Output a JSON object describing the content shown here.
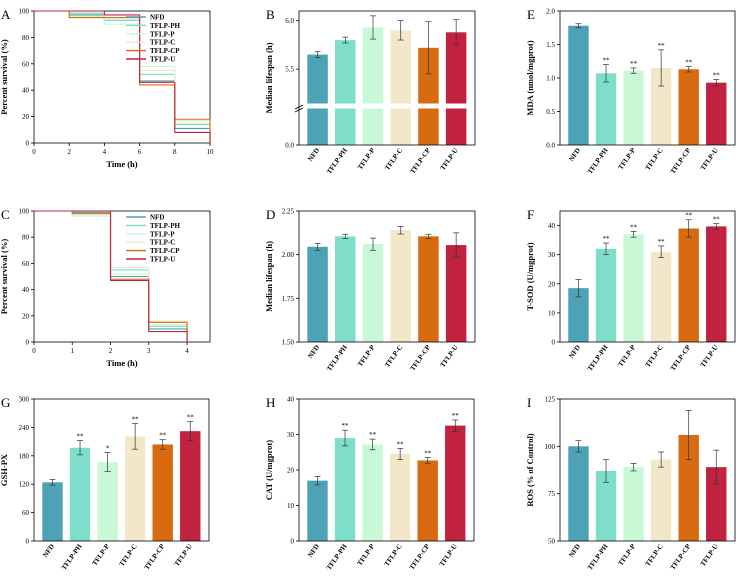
{
  "colors": {
    "NFD": "#4da2b6",
    "TFLP-PH": "#7fdec9",
    "TFLP-P": "#c8f8d6",
    "TFLP-C": "#f3e7c9",
    "TFLP-CP": "#d86a10",
    "TFLP-U": "#c0223f"
  },
  "chart_data": [
    {
      "id": "A",
      "type": "line",
      "xlabel": "Time (h)",
      "ylabel": "Percent survival (%)",
      "xlim": [
        0,
        10
      ],
      "ylim": [
        0,
        100
      ],
      "xticks": [
        0,
        2,
        4,
        6,
        8,
        10
      ],
      "yticks": [
        0,
        20,
        40,
        60,
        80,
        100
      ],
      "legend": [
        "NFD",
        "TFLP-PH",
        "TFLP-P",
        "TFLP-C",
        "TFLP-CP",
        "TFLP-U"
      ],
      "series": [
        {
          "name": "NFD",
          "x": [
            0,
            2,
            4,
            6,
            8,
            10
          ],
          "y": [
            100,
            97,
            93,
            47,
            11,
            0
          ]
        },
        {
          "name": "TFLP-PH",
          "x": [
            0,
            2,
            4,
            6,
            8,
            10
          ],
          "y": [
            100,
            98,
            93,
            52,
            14,
            0
          ]
        },
        {
          "name": "TFLP-P",
          "x": [
            0,
            2,
            4,
            6,
            8,
            10
          ],
          "y": [
            100,
            96,
            90,
            58,
            17,
            0
          ]
        },
        {
          "name": "TFLP-C",
          "x": [
            0,
            2,
            4,
            6,
            8,
            10
          ],
          "y": [
            100,
            99,
            95,
            55,
            15,
            0
          ]
        },
        {
          "name": "TFLP-CP",
          "x": [
            0,
            2,
            4,
            6,
            8,
            10
          ],
          "y": [
            100,
            95,
            95,
            44,
            18,
            0
          ]
        },
        {
          "name": "TFLP-U",
          "x": [
            0,
            2,
            4,
            6,
            8,
            10
          ],
          "y": [
            100,
            100,
            97,
            46,
            8,
            0
          ]
        }
      ]
    },
    {
      "id": "B",
      "type": "bar",
      "ylabel": "Median lifespan (h)",
      "categories": [
        "NFD",
        "TFLP-PH",
        "TFLP-P",
        "TFLP-C",
        "TFLP-CP",
        "TFLP-U"
      ],
      "values": [
        5.65,
        5.8,
        5.93,
        5.9,
        5.72,
        5.88
      ],
      "errors": [
        0.03,
        0.03,
        0.12,
        0.1,
        0.27,
        0.13
      ],
      "ylim_upper": [
        5.15,
        6.1
      ],
      "ylim_lower": [
        0.0,
        0.5
      ],
      "axis_break": true,
      "yticks": [
        0.0,
        5.5,
        6.0
      ],
      "ytick_labels": [
        "0.0",
        "5.5",
        "6.0"
      ],
      "annotations": [
        "",
        "",
        "",
        "",
        "",
        ""
      ]
    },
    {
      "id": "C",
      "type": "line",
      "xlabel": "Time (h)",
      "ylabel": "Percent survival (%)",
      "xlim": [
        0,
        4.6
      ],
      "ylim": [
        0,
        100
      ],
      "xticks": [
        0,
        1,
        2,
        3,
        4
      ],
      "yticks": [
        0,
        20,
        40,
        60,
        80,
        100
      ],
      "legend": [
        "NFD",
        "TFLP-PH",
        "TFLP-P",
        "TFLP-C",
        "TFLP-CP",
        "TFLP-U"
      ],
      "series": [
        {
          "name": "NFD",
          "x": [
            0,
            1,
            2,
            3,
            4
          ],
          "y": [
            100,
            99,
            50,
            10,
            0
          ]
        },
        {
          "name": "TFLP-PH",
          "x": [
            0,
            1,
            2,
            3,
            4
          ],
          "y": [
            100,
            98,
            55,
            12,
            0
          ]
        },
        {
          "name": "TFLP-P",
          "x": [
            0,
            1,
            2,
            3,
            4
          ],
          "y": [
            100,
            96,
            52,
            13,
            0
          ]
        },
        {
          "name": "TFLP-C",
          "x": [
            0,
            1,
            2,
            3,
            4
          ],
          "y": [
            100,
            97,
            57,
            16,
            0
          ]
        },
        {
          "name": "TFLP-CP",
          "x": [
            0,
            1,
            2,
            3,
            4
          ],
          "y": [
            100,
            98,
            48,
            15,
            0
          ]
        },
        {
          "name": "TFLP-U",
          "x": [
            0,
            1,
            2,
            3,
            4
          ],
          "y": [
            100,
            100,
            47,
            8,
            0
          ]
        }
      ]
    },
    {
      "id": "D",
      "type": "bar",
      "ylabel": "Median lifespan (h)",
      "categories": [
        "NFD",
        "TFLP-PH",
        "TFLP-P",
        "TFLP-C",
        "TFLP-CP",
        "TFLP-U"
      ],
      "values": [
        2.045,
        2.105,
        2.06,
        2.14,
        2.105,
        2.055
      ],
      "errors": [
        0.02,
        0.012,
        0.035,
        0.022,
        0.012,
        0.07
      ],
      "ylim": [
        1.5,
        2.25
      ],
      "yticks": [
        1.5,
        1.75,
        2.0,
        2.25
      ],
      "ytick_labels": [
        "1.50",
        "1.75",
        "2.00",
        "2.25"
      ],
      "annotations": [
        "",
        "",
        "",
        "",
        "",
        ""
      ]
    },
    {
      "id": "E",
      "type": "bar",
      "ylabel": "MDA (nmol/mgprot)",
      "categories": [
        "NFD",
        "TFLP-PH",
        "TFLP-P",
        "TFLP-C",
        "TFLP-CP",
        "TFLP-U"
      ],
      "values": [
        1.78,
        1.07,
        1.11,
        1.15,
        1.13,
        0.93
      ],
      "errors": [
        0.03,
        0.13,
        0.04,
        0.27,
        0.04,
        0.05
      ],
      "ylim": [
        0.0,
        2.0
      ],
      "yticks": [
        0.0,
        0.5,
        1.0,
        1.5,
        2.0
      ],
      "ytick_labels": [
        "0.0",
        "0.5",
        "1.0",
        "1.5",
        "2.0"
      ],
      "annotations": [
        "",
        "**",
        "**",
        "**",
        "**",
        "**"
      ]
    },
    {
      "id": "F",
      "type": "bar",
      "ylabel": "T-SOD (U/mgprot)",
      "categories": [
        "NFD",
        "TFLP-PH",
        "TFLP-P",
        "TFLP-C",
        "TFLP-CP",
        "TFLP-U"
      ],
      "values": [
        18.5,
        32.0,
        37.0,
        31.0,
        39.0,
        39.7
      ],
      "errors": [
        3.0,
        2.0,
        1.0,
        2.0,
        3.0,
        1.0
      ],
      "ylim": [
        0,
        45
      ],
      "yticks": [
        0,
        10,
        20,
        30,
        40
      ],
      "ytick_labels": [
        "0",
        "10",
        "20",
        "30",
        "40"
      ],
      "annotations": [
        "",
        "**",
        "**",
        "**",
        "**",
        "**"
      ]
    },
    {
      "id": "G",
      "type": "bar",
      "ylabel": "GSH-PX",
      "categories": [
        "NFD",
        "TFLP-PH",
        "TFLP-P",
        "TFLP-C",
        "TFLP-CP",
        "TFLP-U"
      ],
      "values": [
        124,
        197,
        167,
        221,
        204,
        232
      ],
      "errors": [
        6,
        15,
        20,
        27,
        10,
        20
      ],
      "ylim": [
        0,
        300
      ],
      "yticks": [
        0,
        60,
        120,
        180,
        240,
        300
      ],
      "ytick_labels": [
        "0",
        "60",
        "120",
        "180",
        "240",
        "300"
      ],
      "annotations": [
        "",
        "**",
        "*",
        "**",
        "**",
        "**"
      ]
    },
    {
      "id": "H",
      "type": "bar",
      "ylabel": "CAT (U/mgprot)",
      "categories": [
        "NFD",
        "TFLP-PH",
        "TFLP-P",
        "TFLP-C",
        "TFLP-CP",
        "TFLP-U"
      ],
      "values": [
        17.0,
        29.0,
        27.2,
        24.5,
        22.7,
        32.5
      ],
      "errors": [
        1.2,
        2.2,
        1.5,
        1.6,
        0.8,
        1.6
      ],
      "ylim": [
        0,
        40
      ],
      "yticks": [
        0,
        10,
        20,
        30,
        40
      ],
      "ytick_labels": [
        "0",
        "10",
        "20",
        "30",
        "40"
      ],
      "annotations": [
        "",
        "**",
        "**",
        "**",
        "**",
        "**"
      ]
    },
    {
      "id": "I",
      "type": "bar",
      "ylabel": "ROS (% of Control)",
      "categories": [
        "NFD",
        "TFLP-PH",
        "TFLP-P",
        "TFLP-C",
        "TFLP-CP",
        "TFLP-U"
      ],
      "values": [
        100,
        87,
        89,
        93,
        106,
        89
      ],
      "errors": [
        3,
        6,
        2,
        4,
        13,
        9
      ],
      "ylim": [
        50,
        125
      ],
      "yticks": [
        50,
        75,
        100,
        125
      ],
      "ytick_labels": [
        "50",
        "75",
        "100",
        "125"
      ],
      "annotations": [
        "",
        "",
        "",
        "",
        "",
        ""
      ]
    }
  ]
}
